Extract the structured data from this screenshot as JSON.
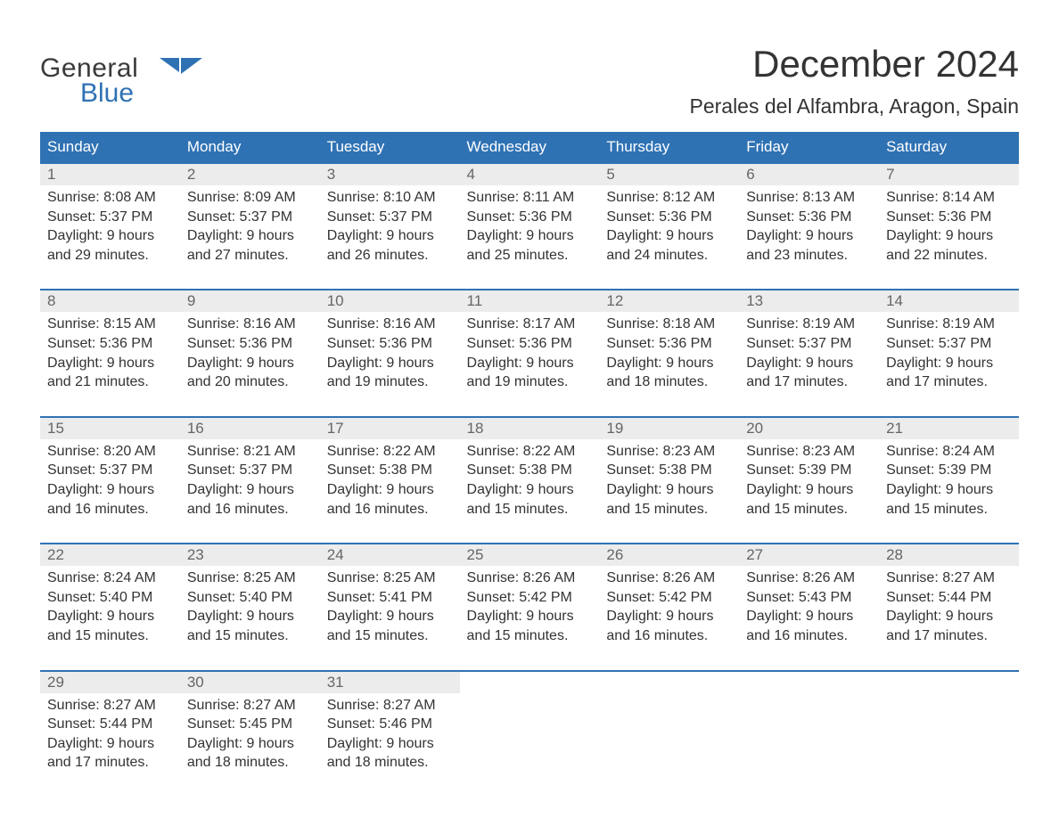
{
  "logo": {
    "word1": "General",
    "word2": "Blue"
  },
  "title": "December 2024",
  "location": "Perales del Alfambra, Aragon, Spain",
  "colors": {
    "header_bg": "#2f72b4",
    "daynum_bg": "#ececec",
    "row_border": "#2f72b4",
    "text": "#333333",
    "logo_blue": "#2f72b4",
    "background": "#ffffff"
  },
  "weekdays": [
    "Sunday",
    "Monday",
    "Tuesday",
    "Wednesday",
    "Thursday",
    "Friday",
    "Saturday"
  ],
  "weeks": [
    [
      {
        "day": "1",
        "sunrise": "Sunrise: 8:08 AM",
        "sunset": "Sunset: 5:37 PM",
        "daylight1": "Daylight: 9 hours",
        "daylight2": "and 29 minutes."
      },
      {
        "day": "2",
        "sunrise": "Sunrise: 8:09 AM",
        "sunset": "Sunset: 5:37 PM",
        "daylight1": "Daylight: 9 hours",
        "daylight2": "and 27 minutes."
      },
      {
        "day": "3",
        "sunrise": "Sunrise: 8:10 AM",
        "sunset": "Sunset: 5:37 PM",
        "daylight1": "Daylight: 9 hours",
        "daylight2": "and 26 minutes."
      },
      {
        "day": "4",
        "sunrise": "Sunrise: 8:11 AM",
        "sunset": "Sunset: 5:36 PM",
        "daylight1": "Daylight: 9 hours",
        "daylight2": "and 25 minutes."
      },
      {
        "day": "5",
        "sunrise": "Sunrise: 8:12 AM",
        "sunset": "Sunset: 5:36 PM",
        "daylight1": "Daylight: 9 hours",
        "daylight2": "and 24 minutes."
      },
      {
        "day": "6",
        "sunrise": "Sunrise: 8:13 AM",
        "sunset": "Sunset: 5:36 PM",
        "daylight1": "Daylight: 9 hours",
        "daylight2": "and 23 minutes."
      },
      {
        "day": "7",
        "sunrise": "Sunrise: 8:14 AM",
        "sunset": "Sunset: 5:36 PM",
        "daylight1": "Daylight: 9 hours",
        "daylight2": "and 22 minutes."
      }
    ],
    [
      {
        "day": "8",
        "sunrise": "Sunrise: 8:15 AM",
        "sunset": "Sunset: 5:36 PM",
        "daylight1": "Daylight: 9 hours",
        "daylight2": "and 21 minutes."
      },
      {
        "day": "9",
        "sunrise": "Sunrise: 8:16 AM",
        "sunset": "Sunset: 5:36 PM",
        "daylight1": "Daylight: 9 hours",
        "daylight2": "and 20 minutes."
      },
      {
        "day": "10",
        "sunrise": "Sunrise: 8:16 AM",
        "sunset": "Sunset: 5:36 PM",
        "daylight1": "Daylight: 9 hours",
        "daylight2": "and 19 minutes."
      },
      {
        "day": "11",
        "sunrise": "Sunrise: 8:17 AM",
        "sunset": "Sunset: 5:36 PM",
        "daylight1": "Daylight: 9 hours",
        "daylight2": "and 19 minutes."
      },
      {
        "day": "12",
        "sunrise": "Sunrise: 8:18 AM",
        "sunset": "Sunset: 5:36 PM",
        "daylight1": "Daylight: 9 hours",
        "daylight2": "and 18 minutes."
      },
      {
        "day": "13",
        "sunrise": "Sunrise: 8:19 AM",
        "sunset": "Sunset: 5:37 PM",
        "daylight1": "Daylight: 9 hours",
        "daylight2": "and 17 minutes."
      },
      {
        "day": "14",
        "sunrise": "Sunrise: 8:19 AM",
        "sunset": "Sunset: 5:37 PM",
        "daylight1": "Daylight: 9 hours",
        "daylight2": "and 17 minutes."
      }
    ],
    [
      {
        "day": "15",
        "sunrise": "Sunrise: 8:20 AM",
        "sunset": "Sunset: 5:37 PM",
        "daylight1": "Daylight: 9 hours",
        "daylight2": "and 16 minutes."
      },
      {
        "day": "16",
        "sunrise": "Sunrise: 8:21 AM",
        "sunset": "Sunset: 5:37 PM",
        "daylight1": "Daylight: 9 hours",
        "daylight2": "and 16 minutes."
      },
      {
        "day": "17",
        "sunrise": "Sunrise: 8:22 AM",
        "sunset": "Sunset: 5:38 PM",
        "daylight1": "Daylight: 9 hours",
        "daylight2": "and 16 minutes."
      },
      {
        "day": "18",
        "sunrise": "Sunrise: 8:22 AM",
        "sunset": "Sunset: 5:38 PM",
        "daylight1": "Daylight: 9 hours",
        "daylight2": "and 15 minutes."
      },
      {
        "day": "19",
        "sunrise": "Sunrise: 8:23 AM",
        "sunset": "Sunset: 5:38 PM",
        "daylight1": "Daylight: 9 hours",
        "daylight2": "and 15 minutes."
      },
      {
        "day": "20",
        "sunrise": "Sunrise: 8:23 AM",
        "sunset": "Sunset: 5:39 PM",
        "daylight1": "Daylight: 9 hours",
        "daylight2": "and 15 minutes."
      },
      {
        "day": "21",
        "sunrise": "Sunrise: 8:24 AM",
        "sunset": "Sunset: 5:39 PM",
        "daylight1": "Daylight: 9 hours",
        "daylight2": "and 15 minutes."
      }
    ],
    [
      {
        "day": "22",
        "sunrise": "Sunrise: 8:24 AM",
        "sunset": "Sunset: 5:40 PM",
        "daylight1": "Daylight: 9 hours",
        "daylight2": "and 15 minutes."
      },
      {
        "day": "23",
        "sunrise": "Sunrise: 8:25 AM",
        "sunset": "Sunset: 5:40 PM",
        "daylight1": "Daylight: 9 hours",
        "daylight2": "and 15 minutes."
      },
      {
        "day": "24",
        "sunrise": "Sunrise: 8:25 AM",
        "sunset": "Sunset: 5:41 PM",
        "daylight1": "Daylight: 9 hours",
        "daylight2": "and 15 minutes."
      },
      {
        "day": "25",
        "sunrise": "Sunrise: 8:26 AM",
        "sunset": "Sunset: 5:42 PM",
        "daylight1": "Daylight: 9 hours",
        "daylight2": "and 15 minutes."
      },
      {
        "day": "26",
        "sunrise": "Sunrise: 8:26 AM",
        "sunset": "Sunset: 5:42 PM",
        "daylight1": "Daylight: 9 hours",
        "daylight2": "and 16 minutes."
      },
      {
        "day": "27",
        "sunrise": "Sunrise: 8:26 AM",
        "sunset": "Sunset: 5:43 PM",
        "daylight1": "Daylight: 9 hours",
        "daylight2": "and 16 minutes."
      },
      {
        "day": "28",
        "sunrise": "Sunrise: 8:27 AM",
        "sunset": "Sunset: 5:44 PM",
        "daylight1": "Daylight: 9 hours",
        "daylight2": "and 17 minutes."
      }
    ],
    [
      {
        "day": "29",
        "sunrise": "Sunrise: 8:27 AM",
        "sunset": "Sunset: 5:44 PM",
        "daylight1": "Daylight: 9 hours",
        "daylight2": "and 17 minutes."
      },
      {
        "day": "30",
        "sunrise": "Sunrise: 8:27 AM",
        "sunset": "Sunset: 5:45 PM",
        "daylight1": "Daylight: 9 hours",
        "daylight2": "and 18 minutes."
      },
      {
        "day": "31",
        "sunrise": "Sunrise: 8:27 AM",
        "sunset": "Sunset: 5:46 PM",
        "daylight1": "Daylight: 9 hours",
        "daylight2": "and 18 minutes."
      },
      null,
      null,
      null,
      null
    ]
  ]
}
